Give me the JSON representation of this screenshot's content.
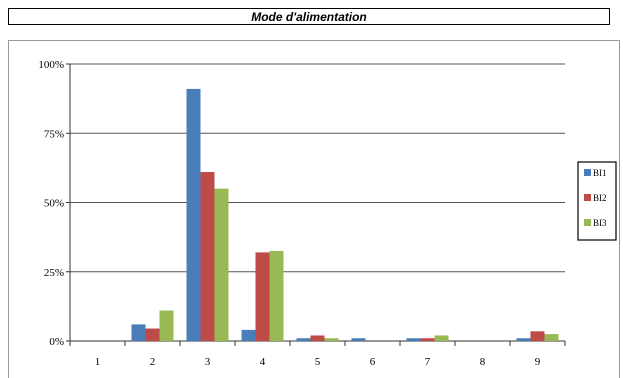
{
  "header": {
    "title": "Mode d'alimentation"
  },
  "chart_data": {
    "type": "bar",
    "title": "Mode d'alimentation",
    "categories": [
      "1",
      "2",
      "3",
      "4",
      "5",
      "6",
      "7",
      "8",
      "9"
    ],
    "series": [
      {
        "name": "BI1",
        "color": "#4a7ebb",
        "values": [
          0,
          6,
          91,
          4,
          1,
          1,
          1,
          0,
          1
        ]
      },
      {
        "name": "BI2",
        "color": "#be4b48",
        "values": [
          0,
          4.5,
          61,
          32,
          2,
          0,
          1,
          0,
          3.5
        ]
      },
      {
        "name": "BI3",
        "color": "#98b954",
        "values": [
          0,
          11,
          55,
          32.5,
          1,
          0,
          2,
          0,
          2.5
        ]
      }
    ],
    "yticks": [
      "0%",
      "25%",
      "50%",
      "75%",
      "100%"
    ],
    "ylim": [
      0,
      100
    ],
    "xlabel": "",
    "ylabel": "",
    "grid": true,
    "legend": "right"
  }
}
